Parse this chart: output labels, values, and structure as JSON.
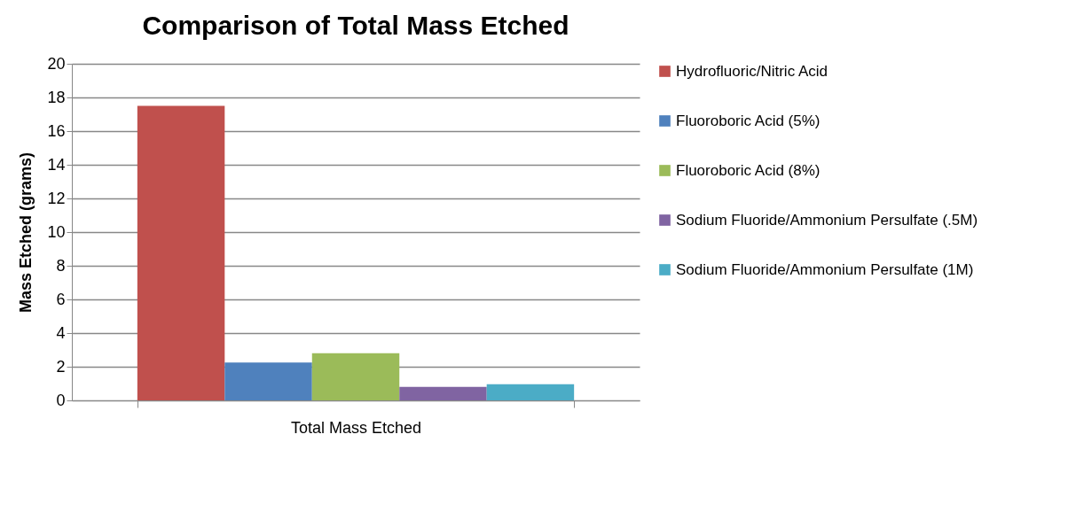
{
  "chart_data": {
    "type": "bar",
    "title": "Comparison of Total Mass Etched",
    "ylabel": "Mass Etched (grams)",
    "categories": [
      "Total Mass Etched"
    ],
    "series": [
      {
        "name": "Hydrofluoric/Nitric Acid",
        "color": "#c0504d",
        "values": [
          17.5
        ]
      },
      {
        "name": "Fluoroboric Acid (5%)",
        "color": "#4f81bd",
        "values": [
          2.25
        ]
      },
      {
        "name": "Fluoroboric Acid (8%)",
        "color": "#9bbb59",
        "values": [
          2.8
        ]
      },
      {
        "name": "Sodium Fluoride/Ammonium Persulfate (.5M)",
        "color": "#8064a2",
        "values": [
          0.8
        ]
      },
      {
        "name": "Sodium Fluoride/Ammonium Persulfate (1M)",
        "color": "#4bacc6",
        "values": [
          0.96
        ]
      }
    ],
    "ylim": [
      0,
      20
    ],
    "yticks": [
      0,
      2,
      4,
      6,
      8,
      10,
      12,
      14,
      16,
      18,
      20
    ],
    "grid": true,
    "legend": "right"
  }
}
